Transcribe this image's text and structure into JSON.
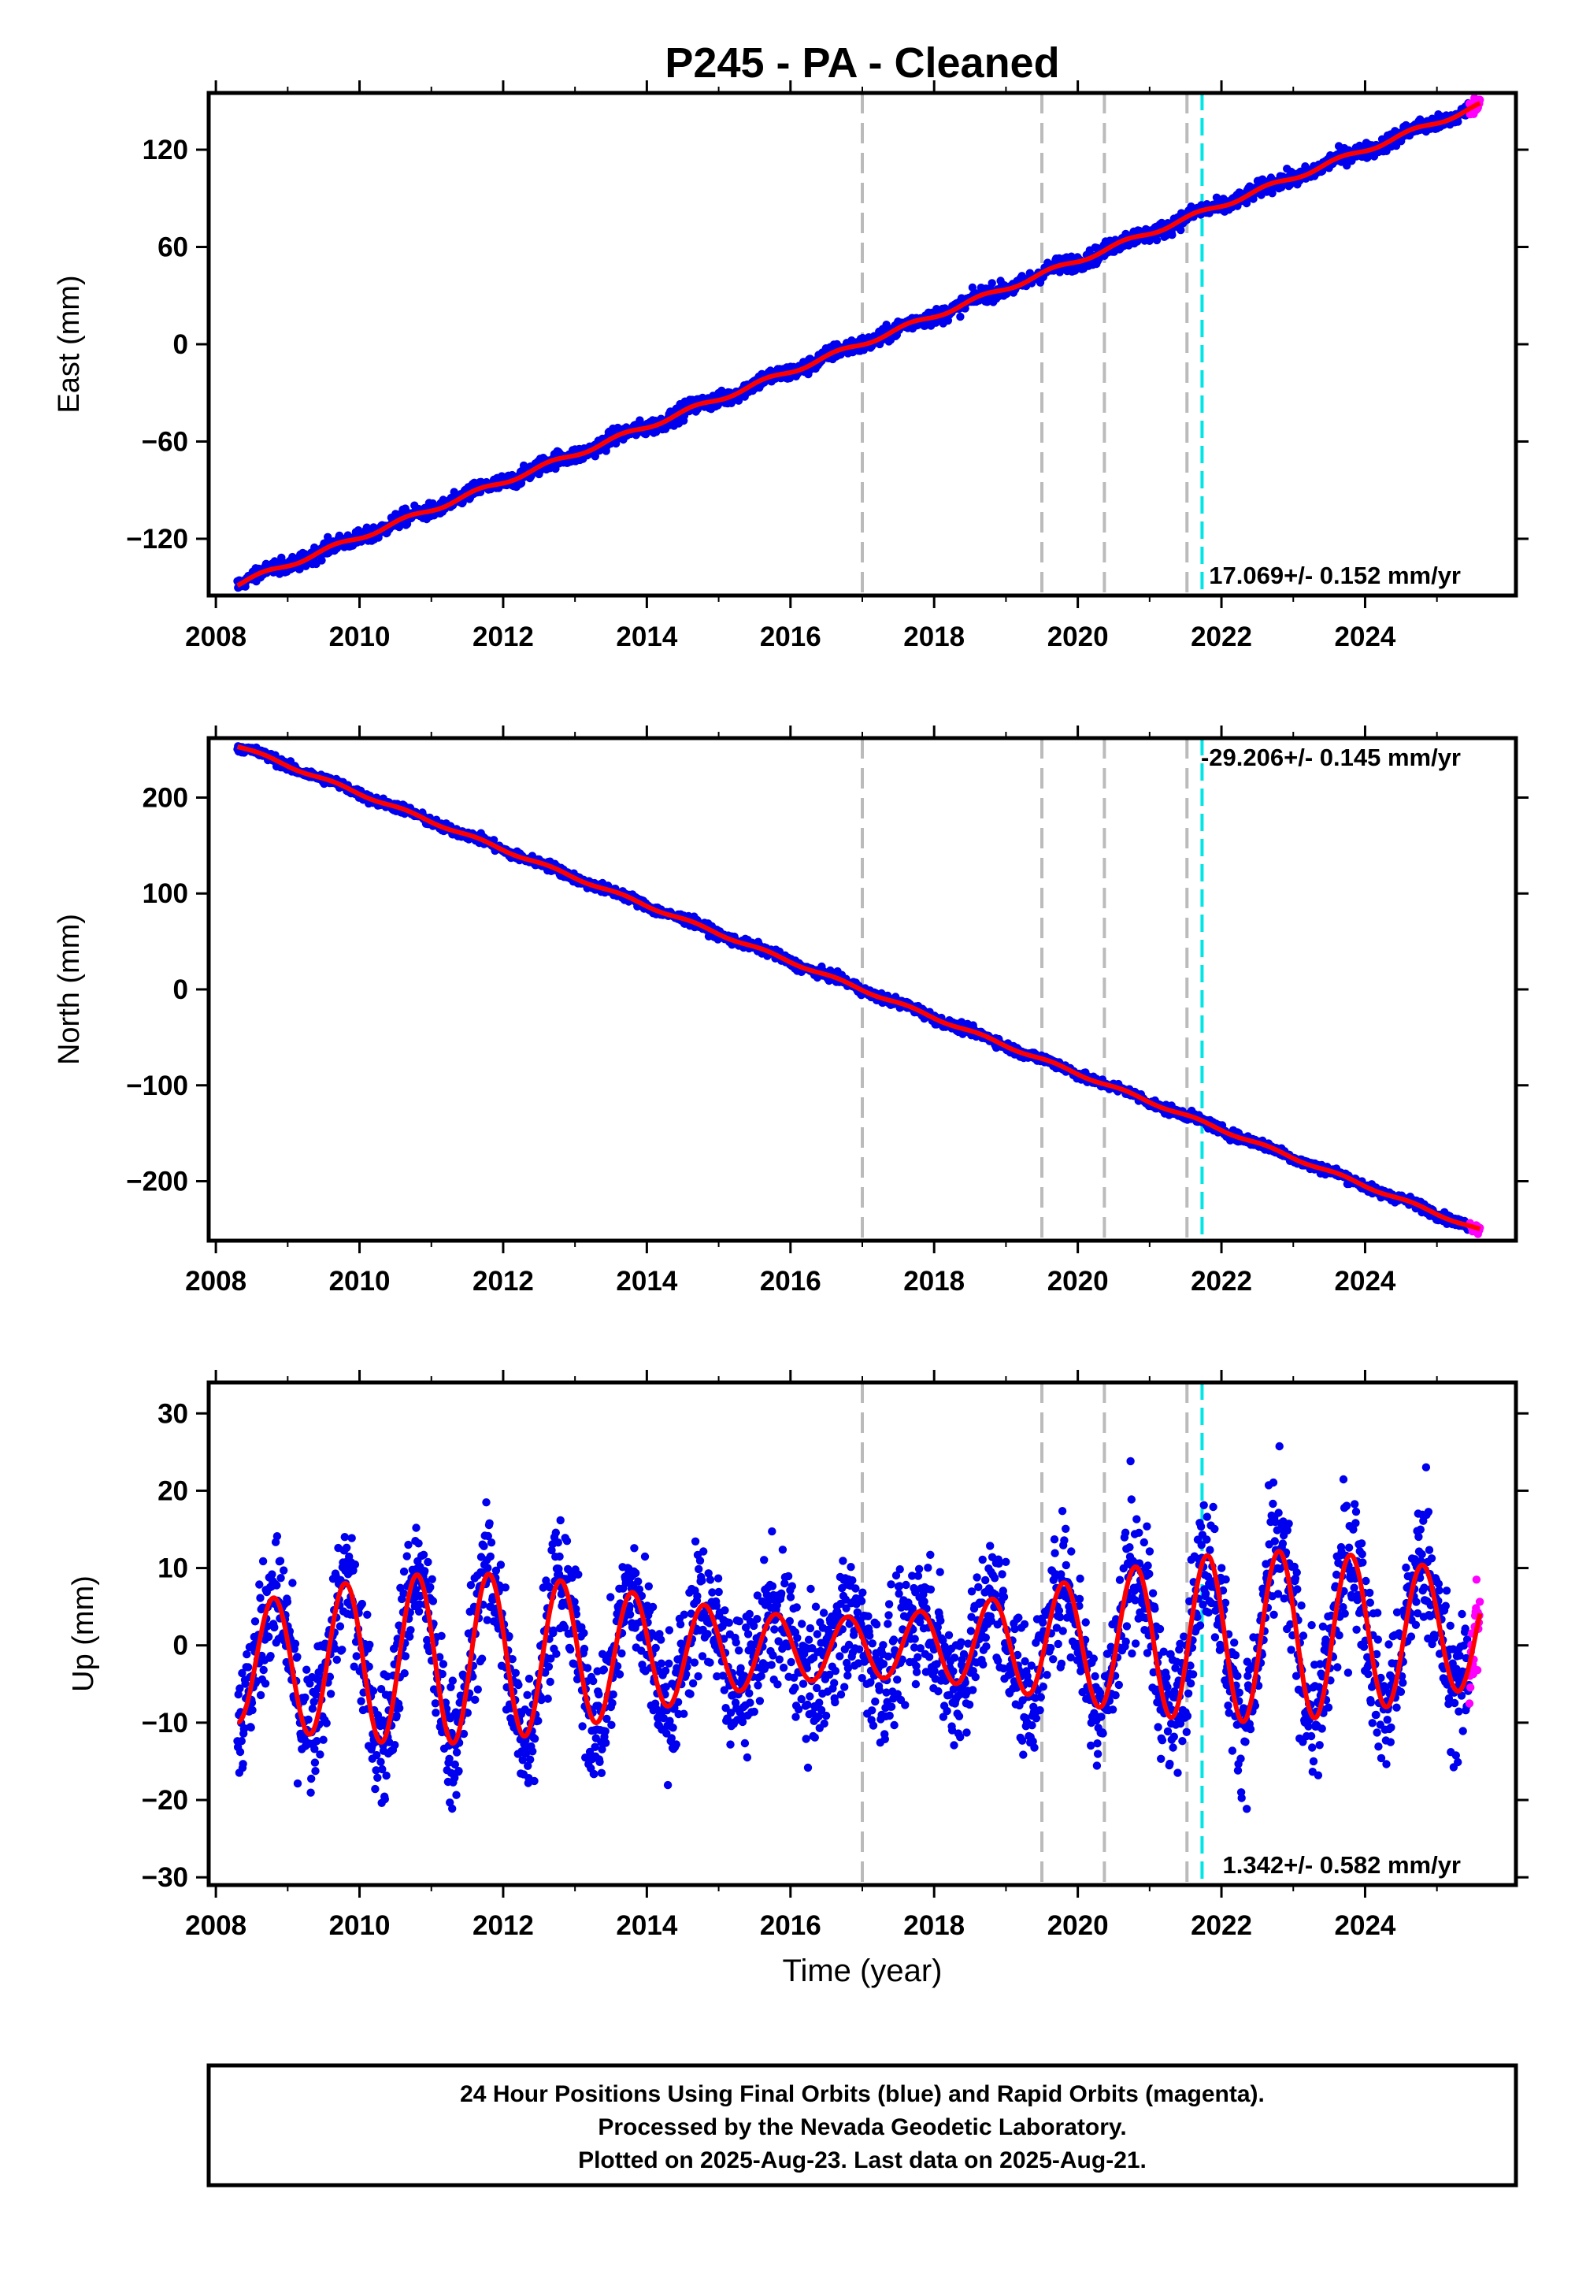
{
  "chart_data": [
    {
      "type": "scatter",
      "title": "P245  - PA - Cleaned",
      "ylabel": "East (mm)",
      "xlabel": "",
      "xlim": [
        2007.9,
        2026.1
      ],
      "ylim": [
        -155,
        155
      ],
      "xticks": [
        2008,
        2010,
        2012,
        2014,
        2016,
        2018,
        2020,
        2022,
        2024
      ],
      "xtick_labels": [
        "2008",
        "2010",
        "2012",
        "2014",
        "2016",
        "2018",
        "2020",
        "2022",
        "2024"
      ],
      "yticks": [
        120,
        60,
        0,
        -60,
        -120
      ],
      "ytick_labels": [
        "120",
        "60",
        "0",
        "−60",
        "−120"
      ],
      "rate_label": "17.069+/- 0.152 mm/yr",
      "model": {
        "t0": 2008.3,
        "t1": 2025.6,
        "y0": -148,
        "rate": 17.069,
        "amp": 1.5
      },
      "jitter": 2.5,
      "rapid_start": 2025.45,
      "equipment_changes": [
        2017.0,
        2019.5,
        2020.37,
        2021.52
      ],
      "earthquakes": [
        2021.73
      ],
      "series": [
        {
          "name": "Final Orbits",
          "color": "#0000ee"
        },
        {
          "name": "Rapid Orbits",
          "color": "#ff00ff"
        },
        {
          "name": "Model",
          "color": "#ff0000"
        }
      ]
    },
    {
      "type": "scatter",
      "title": "",
      "ylabel": "North (mm)",
      "xlabel": "",
      "xlim": [
        2007.9,
        2026.1
      ],
      "ylim": [
        -262,
        262
      ],
      "xticks": [
        2008,
        2010,
        2012,
        2014,
        2016,
        2018,
        2020,
        2022,
        2024
      ],
      "xtick_labels": [
        "2008",
        "2010",
        "2012",
        "2014",
        "2016",
        "2018",
        "2020",
        "2022",
        "2024"
      ],
      "yticks": [
        200,
        100,
        0,
        -100,
        -200
      ],
      "ytick_labels": [
        "200",
        "100",
        "0",
        "−100",
        "−200"
      ],
      "rate_label": "-29.206+/- 0.145 mm/yr",
      "model": {
        "t0": 2008.3,
        "t1": 2025.6,
        "y0": 254,
        "rate": -29.206,
        "amp": 1.5
      },
      "jitter": 2.5,
      "rapid_start": 2025.45,
      "equipment_changes": [
        2017.0,
        2019.5,
        2020.37,
        2021.52
      ],
      "earthquakes": [
        2021.73
      ],
      "series": [
        {
          "name": "Final Orbits",
          "color": "#0000ee"
        },
        {
          "name": "Rapid Orbits",
          "color": "#ff00ff"
        },
        {
          "name": "Model",
          "color": "#ff0000"
        }
      ]
    },
    {
      "type": "scatter",
      "title": "",
      "ylabel": "Up (mm)",
      "xlabel": "Time (year)",
      "xlim": [
        2007.9,
        2026.1
      ],
      "ylim": [
        -31,
        34
      ],
      "xticks": [
        2008,
        2010,
        2012,
        2014,
        2016,
        2018,
        2020,
        2022,
        2024
      ],
      "xtick_labels": [
        "2008",
        "2010",
        "2012",
        "2014",
        "2016",
        "2018",
        "2020",
        "2022",
        "2024"
      ],
      "yticks": [
        30,
        20,
        10,
        0,
        -10,
        -20,
        -30
      ],
      "ytick_labels": [
        "30",
        "20",
        "10",
        "0",
        "−10",
        "−20",
        "−30"
      ],
      "rate_label": "1.342+/- 0.582 mm/yr",
      "model": {
        "t0": 2008.3,
        "t1": 2025.6,
        "y0": -5,
        "rate": 1.342,
        "amp": 9
      },
      "jitter": 4.2,
      "rapid_start": 2025.45,
      "equipment_changes": [
        2017.0,
        2019.5,
        2020.37,
        2021.52
      ],
      "earthquakes": [
        2021.73
      ],
      "series": [
        {
          "name": "Final Orbits",
          "color": "#0000ee"
        },
        {
          "name": "Rapid Orbits",
          "color": "#ff00ff"
        },
        {
          "name": "Model",
          "color": "#ff0000"
        }
      ]
    }
  ],
  "footer": {
    "line1": "24 Hour Positions Using Final Orbits (blue) and Rapid Orbits (magenta).",
    "line2": "Processed by the Nevada Geodetic Laboratory.",
    "line3": "Plotted on 2025-Aug-23. Last data on 2025-Aug-21."
  }
}
